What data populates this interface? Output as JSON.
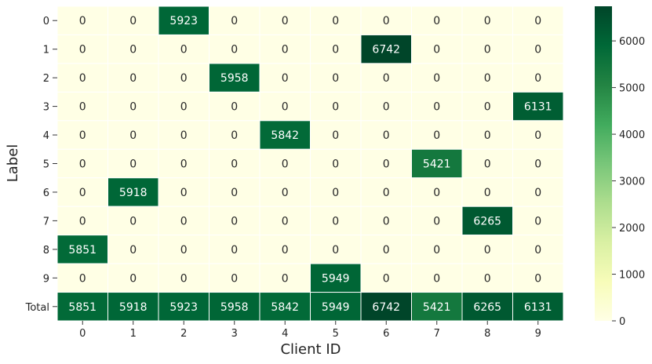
{
  "chart_data": {
    "type": "heatmap",
    "xlabel": "Client ID",
    "ylabel": "Label",
    "x_categories": [
      "0",
      "1",
      "2",
      "3",
      "4",
      "5",
      "6",
      "7",
      "8",
      "9"
    ],
    "y_categories": [
      "0",
      "1",
      "2",
      "3",
      "4",
      "5",
      "6",
      "7",
      "8",
      "9",
      "Total"
    ],
    "values": [
      [
        0,
        0,
        5923,
        0,
        0,
        0,
        0,
        0,
        0,
        0
      ],
      [
        0,
        0,
        0,
        0,
        0,
        0,
        6742,
        0,
        0,
        0
      ],
      [
        0,
        0,
        0,
        5958,
        0,
        0,
        0,
        0,
        0,
        0
      ],
      [
        0,
        0,
        0,
        0,
        0,
        0,
        0,
        0,
        0,
        6131
      ],
      [
        0,
        0,
        0,
        0,
        5842,
        0,
        0,
        0,
        0,
        0
      ],
      [
        0,
        0,
        0,
        0,
        0,
        0,
        0,
        5421,
        0,
        0
      ],
      [
        0,
        5918,
        0,
        0,
        0,
        0,
        0,
        0,
        0,
        0
      ],
      [
        0,
        0,
        0,
        0,
        0,
        0,
        0,
        0,
        6265,
        0
      ],
      [
        5851,
        0,
        0,
        0,
        0,
        0,
        0,
        0,
        0,
        0
      ],
      [
        0,
        0,
        0,
        0,
        0,
        5949,
        0,
        0,
        0,
        0
      ],
      [
        5851,
        5918,
        5923,
        5958,
        5842,
        5949,
        6742,
        5421,
        6265,
        6131
      ]
    ],
    "colormap": "YlGn",
    "vmin": 0,
    "vmax": 6742,
    "colorbar_ticks": [
      "0",
      "1000",
      "2000",
      "3000",
      "4000",
      "5000",
      "6000"
    ],
    "cell_border_color": "#ffffff",
    "annotations": true
  }
}
